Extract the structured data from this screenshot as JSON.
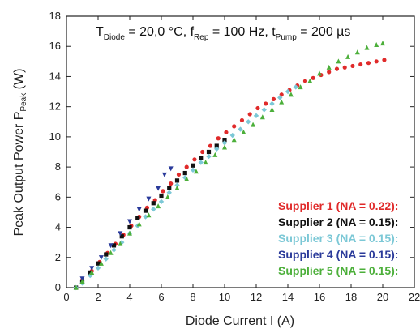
{
  "chart_data": {
    "type": "scatter",
    "conditions": {
      "t_label": "T",
      "t_sub": "Diode",
      "t_val": " = 20,0 °C, f",
      "f_sub": "Rep",
      "f_val": " = 100 Hz, t",
      "p_sub": "Pump",
      "p_val": " = 200 µs"
    },
    "xlabel": "Diode Current I (A)",
    "ylabel_main": "Peak Output Power P",
    "ylabel_sub": "Peak",
    "ylabel_unit": " (W)",
    "xlim": [
      0,
      22
    ],
    "ylim": [
      0,
      18
    ],
    "xticks": [
      "0",
      "2",
      "4",
      "6",
      "8",
      "10",
      "12",
      "14",
      "16",
      "18",
      "20",
      "22"
    ],
    "yticks": [
      "0",
      "2",
      "4",
      "6",
      "8",
      "10",
      "12",
      "14",
      "16",
      "18"
    ],
    "legend_position": "lower-right",
    "series": [
      {
        "name": "Supplier 1 (NA = 0.22):",
        "color": "#e02a2a",
        "marker": "circle",
        "points": [
          [
            0.6,
            0
          ],
          [
            1,
            0.5
          ],
          [
            1.6,
            1.1
          ],
          [
            2.1,
            1.7
          ],
          [
            2.6,
            2.3
          ],
          [
            3.1,
            2.9
          ],
          [
            3.6,
            3.5
          ],
          [
            4.1,
            4.1
          ],
          [
            4.6,
            4.7
          ],
          [
            5.1,
            5.3
          ],
          [
            5.6,
            5.8
          ],
          [
            6.1,
            6.4
          ],
          [
            6.6,
            6.9
          ],
          [
            7.1,
            7.5
          ],
          [
            7.6,
            8.0
          ],
          [
            8.1,
            8.5
          ],
          [
            8.6,
            9.0
          ],
          [
            9.1,
            9.4
          ],
          [
            9.6,
            9.9
          ],
          [
            10.1,
            10.3
          ],
          [
            10.6,
            10.7
          ],
          [
            11.1,
            11.1
          ],
          [
            11.6,
            11.5
          ],
          [
            12.1,
            11.9
          ],
          [
            12.6,
            12.2
          ],
          [
            13.1,
            12.5
          ],
          [
            13.6,
            12.8
          ],
          [
            14.1,
            13.1
          ],
          [
            14.6,
            13.4
          ],
          [
            15.1,
            13.7
          ],
          [
            15.6,
            13.9
          ],
          [
            16.1,
            14.1
          ],
          [
            16.6,
            14.3
          ],
          [
            17.1,
            14.5
          ],
          [
            17.6,
            14.6
          ],
          [
            18.1,
            14.7
          ],
          [
            18.6,
            14.8
          ],
          [
            19.1,
            14.9
          ],
          [
            19.6,
            15.0
          ],
          [
            20.1,
            15.1
          ]
        ]
      },
      {
        "name": "Supplier 2 (NA = 0.15):",
        "color": "#111111",
        "marker": "square",
        "points": [
          [
            0.6,
            0
          ],
          [
            1,
            0.4
          ],
          [
            1.5,
            1.0
          ],
          [
            2,
            1.6
          ],
          [
            2.5,
            2.2
          ],
          [
            3,
            2.8
          ],
          [
            3.5,
            3.4
          ],
          [
            4,
            4.0
          ],
          [
            4.5,
            4.6
          ],
          [
            5,
            5.1
          ],
          [
            5.5,
            5.6
          ],
          [
            6,
            6.1
          ],
          [
            6.5,
            6.6
          ],
          [
            7,
            7.1
          ],
          [
            7.5,
            7.6
          ],
          [
            8,
            8.1
          ],
          [
            8.5,
            8.6
          ],
          [
            9,
            9.0
          ],
          [
            9.5,
            9.4
          ],
          [
            10,
            9.8
          ]
        ]
      },
      {
        "name": "Supplier 3 (NA = 0.15):",
        "color": "#7cc8d6",
        "marker": "diamond",
        "points": [
          [
            0.6,
            0
          ],
          [
            1,
            0.3
          ],
          [
            1.5,
            0.8
          ],
          [
            2,
            1.3
          ],
          [
            2.5,
            1.9
          ],
          [
            3,
            2.5
          ],
          [
            3.5,
            3.0
          ],
          [
            4,
            3.6
          ],
          [
            4.5,
            4.1
          ],
          [
            5,
            4.7
          ],
          [
            5.5,
            5.2
          ],
          [
            6,
            5.7
          ],
          [
            6.5,
            6.3
          ],
          [
            7,
            6.8
          ],
          [
            7.5,
            7.3
          ],
          [
            8,
            7.8
          ],
          [
            8.5,
            8.3
          ],
          [
            9,
            8.7
          ],
          [
            9.5,
            9.2
          ],
          [
            10,
            9.6
          ],
          [
            10.5,
            10.1
          ],
          [
            11,
            10.5
          ],
          [
            11.5,
            11.0
          ],
          [
            12,
            11.4
          ],
          [
            12.5,
            11.8
          ],
          [
            13,
            12.2
          ],
          [
            13.5,
            12.6
          ],
          [
            14,
            13.0
          ],
          [
            14.5,
            13.3
          ]
        ]
      },
      {
        "name": "Supplier 4 (NA = 0.15):",
        "color": "#2a3a9a",
        "marker": "triangle-down",
        "points": [
          [
            1,
            0.6
          ],
          [
            1.6,
            1.3
          ],
          [
            2.2,
            2.0
          ],
          [
            2.8,
            2.8
          ],
          [
            3.4,
            3.6
          ],
          [
            4,
            4.4
          ],
          [
            4.6,
            5.2
          ],
          [
            5.2,
            5.9
          ],
          [
            5.8,
            6.6
          ],
          [
            6.2,
            7.5
          ],
          [
            6.6,
            7.9
          ]
        ]
      },
      {
        "name": "Supplier 5 (NA = 0.15):",
        "color": "#4caf3a",
        "marker": "triangle-up",
        "points": [
          [
            0.6,
            0
          ],
          [
            1,
            0.4
          ],
          [
            1.6,
            1.0
          ],
          [
            2.2,
            1.6
          ],
          [
            2.8,
            2.3
          ],
          [
            3.4,
            2.9
          ],
          [
            4,
            3.6
          ],
          [
            4.6,
            4.2
          ],
          [
            5.2,
            4.8
          ],
          [
            5.8,
            5.4
          ],
          [
            6.4,
            6.0
          ],
          [
            7,
            6.6
          ],
          [
            7.6,
            7.2
          ],
          [
            8.2,
            7.7
          ],
          [
            8.8,
            8.3
          ],
          [
            9.4,
            8.8
          ],
          [
            10,
            9.3
          ],
          [
            10.6,
            9.8
          ],
          [
            11.2,
            10.3
          ],
          [
            11.8,
            10.8
          ],
          [
            12.4,
            11.3
          ],
          [
            13,
            11.8
          ],
          [
            13.6,
            12.3
          ],
          [
            14.2,
            12.8
          ],
          [
            14.8,
            13.3
          ],
          [
            15.4,
            13.7
          ],
          [
            16,
            14.2
          ],
          [
            16.6,
            14.6
          ],
          [
            17.2,
            15.0
          ],
          [
            17.8,
            15.3
          ],
          [
            18.4,
            15.6
          ],
          [
            19,
            15.9
          ],
          [
            19.6,
            16.1
          ],
          [
            20,
            16.2
          ]
        ]
      }
    ]
  }
}
